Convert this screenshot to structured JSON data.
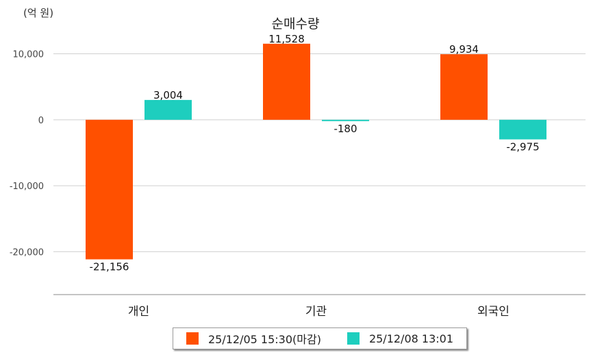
{
  "chart_data": {
    "type": "bar",
    "title": "순매수량",
    "unit_label": "(억 원)",
    "categories": [
      "개인",
      "기관",
      "외국인"
    ],
    "series": [
      {
        "name": "25/12/05 15:30(마감)",
        "color": "#FF5000",
        "values": [
          -21156,
          11528,
          9934
        ],
        "labels": [
          "-21,156",
          "11,528",
          "9,934"
        ]
      },
      {
        "name": "25/12/08 13:01",
        "color": "#1ECEBE",
        "values": [
          3004,
          -180,
          -2975
        ],
        "labels": [
          "3,004",
          "-180",
          "-2,975"
        ]
      }
    ],
    "y_ticks": [
      10000,
      0,
      -10000,
      -20000
    ],
    "y_tick_labels": [
      "10,000",
      "0",
      "-10,000",
      "-20,000"
    ],
    "ylim": [
      -26500,
      14000
    ],
    "grid": true,
    "legend_position": "bottom"
  }
}
